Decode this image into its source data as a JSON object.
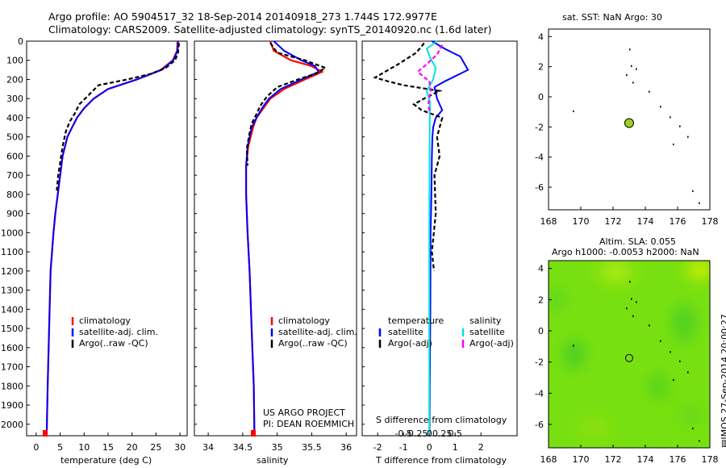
{
  "header": {
    "line1": "Argo profile: AO 5904517_32 18-Sep-2014 20140918_273 1.744S 172.9977E",
    "line2": "Climatology: CARS2009. Satellite-adjusted climatology: synTS_20140920.nc (1.6d later)"
  },
  "depth_ticks": [
    "0",
    "100",
    "200",
    "300",
    "400",
    "500",
    "600",
    "700",
    "800",
    "900",
    "1000",
    "1100",
    "1200",
    "1300",
    "1400",
    "1500",
    "1600",
    "1700",
    "1800",
    "1900",
    "2000"
  ],
  "panels": {
    "temperature": {
      "xlabel": "temperature (deg C)",
      "xticks": [
        "0",
        "5",
        "10",
        "15",
        "20",
        "25",
        "30"
      ],
      "legend": [
        "climatology",
        "satellite-adj. clim.",
        "Argo(..raw -QC)"
      ]
    },
    "salinity": {
      "xlabel": "salinity",
      "xticks": [
        "34",
        "34.5",
        "35",
        "35.5",
        "36"
      ],
      "legend": [
        "climatology",
        "satellite-adj. clim.",
        "Argo(..raw -QC)"
      ],
      "credit1": "US ARGO PROJECT",
      "credit2": "PI: DEAN ROEMMICH"
    },
    "difference": {
      "xlabel": "T difference from climatology",
      "top_label": "S difference from climatology",
      "t_ticks": [
        "-2",
        "-1",
        "0",
        "1",
        "2"
      ],
      "s_ticks": [
        "-0.5",
        "-0.25",
        "0",
        "0.25",
        "0.5"
      ],
      "legend_t_title": "temperature",
      "legend_s_title": "salinity",
      "legend_t": [
        "satellite",
        "Argo(-adj)"
      ],
      "legend_s": [
        "satellite",
        "Argo(-adj)"
      ]
    }
  },
  "maps": {
    "sst_title": "sat. SST: NaN Argo: 30",
    "sla_title1": "Altim. SLA: 0.055",
    "sla_title2": "Argo h1000: -0.0053 h2000: NaN",
    "lon_ticks": [
      "168",
      "170",
      "172",
      "174",
      "176",
      "178"
    ],
    "sst_lat_ticks": [
      "4",
      "2",
      "0",
      "-2",
      "-4",
      "-6"
    ],
    "sla_lat_ticks": [
      "4",
      "2",
      "0",
      "-2",
      "-4",
      "-6"
    ],
    "stamp": "IMOS 27-Sep-2014 20:00:27",
    "argo_marker_color": "#9ad21e",
    "sla_field_color": "#78e010"
  },
  "colors": {
    "climatology": "#ff0000",
    "satellite": "#0000ff",
    "argo": "#000000",
    "sat_salinity": "#00e0e0",
    "argo_salinity": "#ff00ff"
  },
  "chart_data": [
    {
      "type": "line",
      "name_ref": "temperature",
      "xlabel": "temperature (deg C)",
      "ylabel": "",
      "xlim": [
        -2,
        31.5
      ],
      "ylim": [
        2060,
        0
      ],
      "series": [
        {
          "name": "climatology",
          "x": [
            29.5,
            29.4,
            28.5,
            26,
            21,
            15,
            12,
            10,
            8.5,
            7.5,
            6.5,
            5.5,
            5,
            4.5,
            4,
            3.6,
            3.3,
            3,
            2.8,
            2.6,
            2.4,
            2.2
          ],
          "y": [
            0,
            50,
            100,
            150,
            200,
            250,
            300,
            350,
            400,
            450,
            500,
            600,
            700,
            800,
            900,
            1000,
            1100,
            1200,
            1400,
            1600,
            1800,
            2050
          ]
        },
        {
          "name": "satellite-adj. clim.",
          "x": [
            29.6,
            29.5,
            28.6,
            26.2,
            21,
            15,
            12,
            10,
            8.5,
            7.5,
            6.5,
            5.5,
            5,
            4.5,
            4,
            3.6,
            3.3,
            3,
            2.8,
            2.6,
            2.4,
            2.2
          ],
          "y": [
            0,
            50,
            100,
            150,
            200,
            250,
            300,
            350,
            400,
            450,
            500,
            600,
            700,
            800,
            900,
            1000,
            1100,
            1200,
            1400,
            1600,
            1800,
            2050
          ]
        },
        {
          "name": "Argo(..raw -QC)",
          "x": [
            29.8,
            29.6,
            29,
            27,
            24,
            19,
            13,
            11,
            9,
            8,
            7,
            6.2,
            5.5,
            5.2,
            4.6,
            4.3
          ],
          "y": [
            10,
            60,
            100,
            140,
            170,
            200,
            230,
            280,
            330,
            380,
            420,
            470,
            550,
            600,
            700,
            780
          ]
        }
      ]
    },
    {
      "type": "line",
      "name_ref": "salinity",
      "xlabel": "salinity",
      "ylabel": "",
      "xlim": [
        33.8,
        36.15
      ],
      "ylim": [
        2060,
        0
      ],
      "series": [
        {
          "name": "climatology",
          "x": [
            34.9,
            34.95,
            35.2,
            35.5,
            35.65,
            35.4,
            35.1,
            34.9,
            34.8,
            34.7,
            34.65,
            34.58,
            34.55,
            34.55,
            34.57,
            34.6,
            34.62,
            34.64,
            34.66,
            34.67
          ],
          "y": [
            0,
            50,
            100,
            130,
            160,
            200,
            250,
            300,
            350,
            400,
            450,
            550,
            650,
            800,
            1000,
            1200,
            1400,
            1600,
            1800,
            2050
          ]
        },
        {
          "name": "satellite-adj. clim.",
          "x": [
            34.95,
            35.1,
            35.35,
            35.55,
            35.6,
            35.35,
            35.05,
            34.88,
            34.78,
            34.7,
            34.63,
            34.57,
            34.55,
            34.55,
            34.57,
            34.6,
            34.62,
            34.64,
            34.66,
            34.67
          ],
          "y": [
            0,
            50,
            100,
            130,
            160,
            200,
            250,
            300,
            350,
            400,
            450,
            550,
            650,
            800,
            1000,
            1200,
            1400,
            1600,
            1800,
            2050
          ]
        },
        {
          "name": "Argo(..raw -QC)",
          "x": [
            34.9,
            35.0,
            35.4,
            35.7,
            35.55,
            35.3,
            35.0,
            34.85,
            34.75,
            34.7,
            34.63,
            34.6,
            34.56,
            34.57
          ],
          "y": [
            10,
            60,
            100,
            140,
            170,
            200,
            240,
            290,
            340,
            380,
            430,
            480,
            560,
            650
          ]
        }
      ]
    },
    {
      "type": "line",
      "name_ref": "difference",
      "xlabel": "T difference from climatology",
      "ylabel": "",
      "xlim": [
        -2.6,
        3.4
      ],
      "ylim": [
        2060,
        0
      ],
      "series": [
        {
          "name": "temperature satellite",
          "x": [
            0.1,
            0.6,
            1.2,
            1.5,
            0.6,
            0.2,
            0.3,
            0.5,
            0.25,
            0.15,
            0.12,
            0.1,
            0.08,
            0.05,
            0.04,
            0.02,
            0.01
          ],
          "y": [
            0,
            40,
            80,
            150,
            210,
            240,
            300,
            360,
            400,
            450,
            500,
            600,
            800,
            1000,
            1400,
            1800,
            2050
          ]
        },
        {
          "name": "temperature Argo(-adj)",
          "x": [
            -0.2,
            -0.5,
            -1.2,
            -2.1,
            -1.6,
            -1.0,
            0.4,
            -0.2,
            -0.6,
            -0.3,
            0.5,
            0.3,
            0.4,
            0.2,
            0.25,
            0.1,
            0.18
          ],
          "y": [
            10,
            60,
            120,
            190,
            210,
            230,
            260,
            300,
            330,
            360,
            400,
            500,
            600,
            700,
            900,
            1100,
            1200
          ]
        },
        {
          "name": "salinity satellite",
          "x": [
            0.3,
            -0.1,
            0.05,
            0.25,
            0.15,
            -0.1,
            0.03,
            0.02,
            0.01,
            0.0,
            0.0,
            0.0
          ],
          "y": [
            0,
            40,
            90,
            140,
            200,
            260,
            320,
            400,
            600,
            1000,
            1500,
            2050
          ]
        },
        {
          "name": "salinity Argo(-adj)",
          "x": [
            0.5,
            0.3,
            -0.1,
            -0.45,
            0.0,
            0.05,
            -0.03,
            0.01
          ],
          "y": [
            20,
            70,
            120,
            160,
            210,
            260,
            320,
            380
          ]
        }
      ]
    },
    {
      "type": "scatter",
      "name_ref": "sst_map",
      "title": "sat. SST: NaN Argo: 30",
      "xlim": [
        168,
        178
      ],
      "ylim": [
        -7.5,
        4.5
      ],
      "series": [
        {
          "name": "Argo",
          "x": [
            172.9977
          ],
          "y": [
            -1.744
          ]
        }
      ]
    },
    {
      "type": "heatmap",
      "name_ref": "sla_map",
      "title": "Altim. SLA: 0.055",
      "xlim": [
        168,
        178
      ],
      "ylim": [
        -7.5,
        4.5
      ],
      "series": [
        {
          "name": "Argo",
          "x": [
            172.9977
          ],
          "y": [
            -1.744
          ]
        }
      ]
    }
  ]
}
